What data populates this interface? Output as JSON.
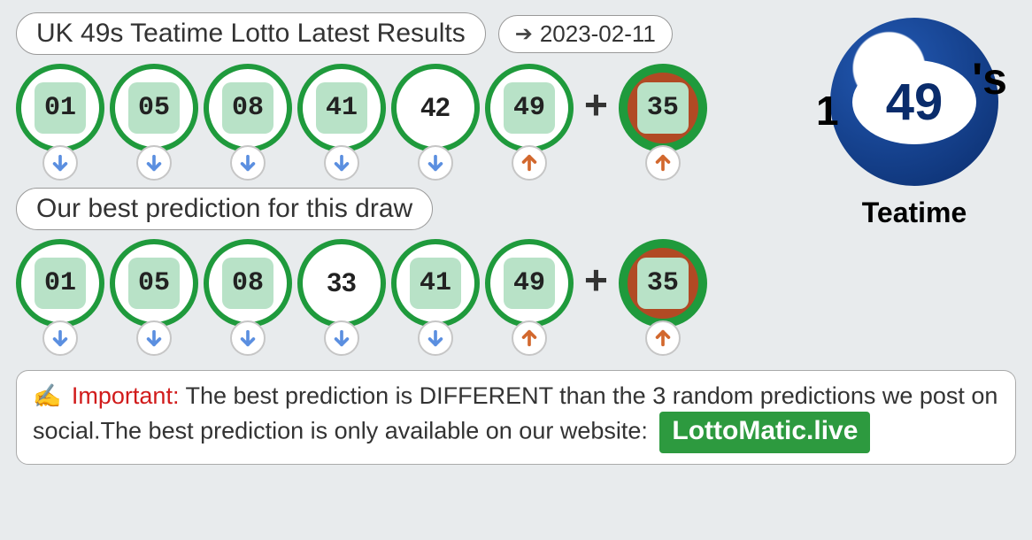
{
  "colors": {
    "ball_border": "#1f9a3c",
    "bonus_border": "#1f9a3c",
    "bonus_fill": "#b14a24",
    "chip_bg": "#b8e2c7",
    "trend_down": "#5b8fe0",
    "trend_up": "#d2682e",
    "badge_bg": "#2d9a3f"
  },
  "header": {
    "title": "UK 49s Teatime Lotto Latest Results",
    "date": "2023-02-11"
  },
  "results": {
    "balls": [
      {
        "value": "01",
        "matched": true,
        "trend": "down"
      },
      {
        "value": "05",
        "matched": true,
        "trend": "down"
      },
      {
        "value": "08",
        "matched": true,
        "trend": "down"
      },
      {
        "value": "41",
        "matched": true,
        "trend": "down"
      },
      {
        "value": "42",
        "matched": false,
        "trend": "down"
      },
      {
        "value": "49",
        "matched": true,
        "trend": "up"
      }
    ],
    "bonus": {
      "value": "35",
      "trend": "up"
    }
  },
  "prediction_header": "Our best prediction for this draw",
  "prediction": {
    "balls": [
      {
        "value": "01",
        "matched": true,
        "trend": "down"
      },
      {
        "value": "05",
        "matched": true,
        "trend": "down"
      },
      {
        "value": "08",
        "matched": true,
        "trend": "down"
      },
      {
        "value": "33",
        "matched": false,
        "trend": "down"
      },
      {
        "value": "41",
        "matched": true,
        "trend": "down"
      },
      {
        "value": "49",
        "matched": true,
        "trend": "up"
      }
    ],
    "bonus": {
      "value": "35",
      "trend": "up"
    }
  },
  "logo": {
    "number": "49",
    "suffix": "'s",
    "label": "Teatime"
  },
  "notice": {
    "icon": "✍️",
    "important_label": "Important:",
    "text": "The best prediction is DIFFERENT than the 3 random predictions we post on social.The best prediction is only available on our website:",
    "site": "LottoMatic.live"
  }
}
